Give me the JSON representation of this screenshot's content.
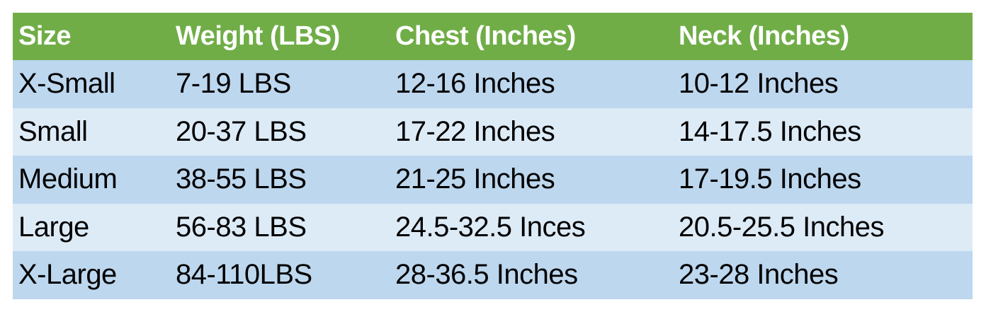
{
  "colors": {
    "header_bg": "#70AD47",
    "row_odd_bg": "#BDD7EE",
    "row_even_bg": "#DDEBF7"
  },
  "table": {
    "headers": [
      "Size",
      "Weight (LBS)",
      "Chest (Inches)",
      "Neck (Inches)"
    ],
    "rows": [
      [
        "X-Small",
        "7-19 LBS",
        "12-16 Inches",
        "10-12 Inches"
      ],
      [
        "Small",
        "20-37 LBS",
        "17-22 Inches",
        "14-17.5 Inches"
      ],
      [
        "Medium",
        "38-55 LBS",
        "21-25 Inches",
        "17-19.5 Inches"
      ],
      [
        "Large",
        "56-83 LBS",
        "24.5-32.5 Inces",
        "20.5-25.5 Inches"
      ],
      [
        "X-Large",
        "84-110LBS",
        "28-36.5 Inches",
        "23-28 Inches"
      ]
    ]
  }
}
